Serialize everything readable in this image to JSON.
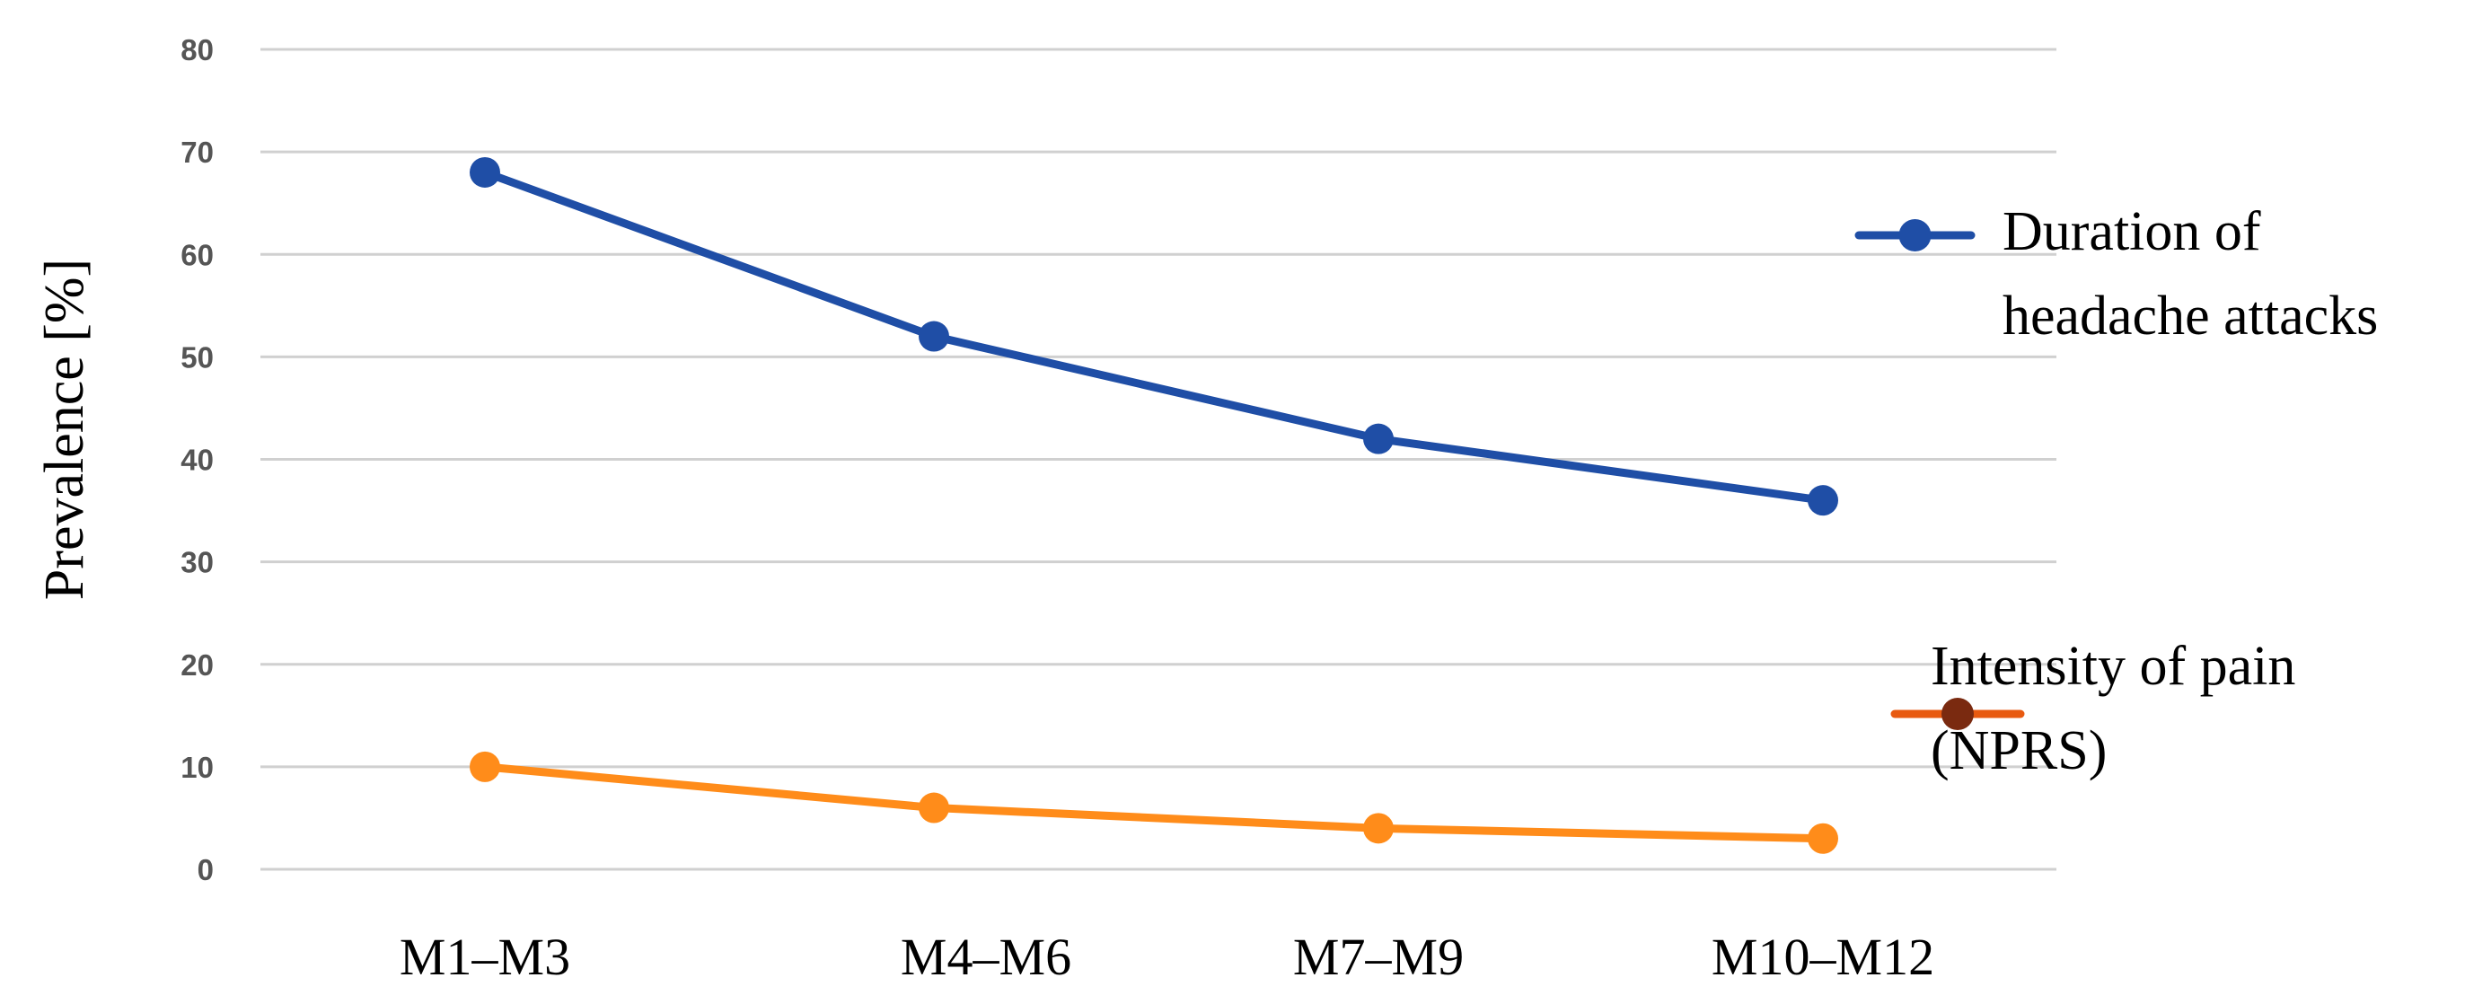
{
  "chart_data": {
    "type": "line",
    "categories": [
      "M1–M3",
      "M4–M6",
      "M7–M9",
      "M10–M12"
    ],
    "series": [
      {
        "name": "Duration of headache attacks",
        "name_lines": [
          "Duration of",
          "headache attacks"
        ],
        "values": [
          68,
          52,
          42,
          36
        ],
        "color": "#1f4ea6"
      },
      {
        "name": "Intensity of pain (NPRS)",
        "name_lines": [
          "Intensity of pain",
          "(NPRS)"
        ],
        "values": [
          10,
          6,
          4,
          3
        ],
        "color": "#ff8c1a",
        "legend_marker_color": "#7a2a10",
        "legend_line_color": "#e85a10"
      }
    ],
    "ylabel": "Prevalence [%]",
    "yticks": [
      0,
      10,
      20,
      30,
      40,
      50,
      60,
      70,
      80
    ],
    "ylim": [
      0,
      80
    ],
    "grid": true,
    "legend_position": "right"
  }
}
